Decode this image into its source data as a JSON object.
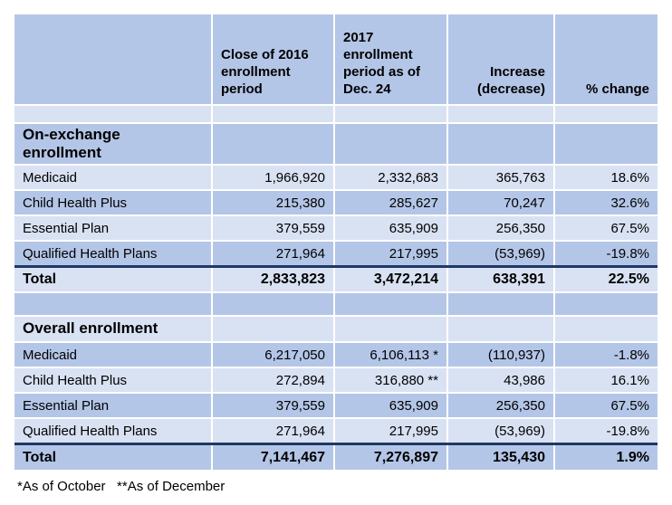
{
  "table_header": {
    "col_2016": "Close of 2016\nenrollment\nperiod",
    "col_2017": "2017\nenrollment\nperiod as of\nDec. 24",
    "col_increase": "Increase\n(decrease)",
    "col_pct_change": "% change"
  },
  "sections": [
    {
      "title": "On-exchange\nenrollment",
      "rows": [
        {
          "label": "Medicaid",
          "v2016": "1,966,920",
          "v2017": "2,332,683",
          "increase": "365,763",
          "pct_change": "18.6%"
        },
        {
          "label": "Child Health Plus",
          "v2016": "215,380",
          "v2017": "285,627",
          "increase": "70,247",
          "pct_change": "32.6%"
        },
        {
          "label": "Essential Plan",
          "v2016": "379,559",
          "v2017": "635,909",
          "increase": "256,350",
          "pct_change": "67.5%"
        },
        {
          "label": "Qualified Health Plans",
          "v2016": "271,964",
          "v2017": "217,995",
          "increase": "(53,969)",
          "pct_change": "-19.8%"
        }
      ],
      "total": {
        "label": "Total",
        "v2016": "2,833,823",
        "v2017": "3,472,214",
        "increase": "638,391",
        "pct_change": "22.5%"
      }
    },
    {
      "title": "Overall enrollment",
      "rows": [
        {
          "label": "Medicaid",
          "v2016": "6,217,050",
          "v2017": "6,106,113 *",
          "increase": "(110,937)",
          "pct_change": "-1.8%"
        },
        {
          "label": "Child Health Plus",
          "v2016": "272,894",
          "v2017": "316,880 **",
          "increase": "43,986",
          "pct_change": "16.1%"
        },
        {
          "label": "Essential Plan",
          "v2016": "379,559",
          "v2017": "635,909",
          "increase": "256,350",
          "pct_change": "67.5%"
        },
        {
          "label": "Qualified Health Plans",
          "v2016": "271,964",
          "v2017": "217,995",
          "increase": "(53,969)",
          "pct_change": "-19.8%"
        }
      ],
      "total": {
        "label": "Total",
        "v2016": "7,141,467",
        "v2017": "7,276,897",
        "increase": "135,430",
        "pct_change": "1.9%"
      }
    }
  ],
  "footnote": "*As of October   **As of December",
  "colors": {
    "band_medium": "#b4c6e7",
    "band_light": "#d9e2f3",
    "total_divider_line": "#1f3864",
    "grid_line": "#ffffff",
    "text": "#000000"
  },
  "chart_data": {
    "type": "table",
    "title": "",
    "columns": [
      "",
      "Close of 2016 enrollment period",
      "2017 enrollment period as of Dec. 24",
      "Increase (decrease)",
      "% change"
    ],
    "rows": [
      [
        "On-exchange enrollment",
        "",
        "",
        "",
        ""
      ],
      [
        "Medicaid",
        "1,966,920",
        "2,332,683",
        "365,763",
        "18.6%"
      ],
      [
        "Child Health Plus",
        "215,380",
        "285,627",
        "70,247",
        "32.6%"
      ],
      [
        "Essential Plan",
        "379,559",
        "635,909",
        "256,350",
        "67.5%"
      ],
      [
        "Qualified Health Plans",
        "271,964",
        "217,995",
        "(53,969)",
        "-19.8%"
      ],
      [
        "Total",
        "2,833,823",
        "3,472,214",
        "638,391",
        "22.5%"
      ],
      [
        "Overall enrollment",
        "",
        "",
        "",
        ""
      ],
      [
        "Medicaid",
        "6,217,050",
        "6,106,113 *",
        "(110,937)",
        "-1.8%"
      ],
      [
        "Child Health Plus",
        "272,894",
        "316,880 **",
        "43,986",
        "16.1%"
      ],
      [
        "Essential Plan",
        "379,559",
        "635,909",
        "256,350",
        "67.5%"
      ],
      [
        "Qualified Health Plans",
        "271,964",
        "217,995",
        "(53,969)",
        "-19.8%"
      ],
      [
        "Total",
        "7,141,467",
        "7,276,897",
        "135,430",
        "1.9%"
      ]
    ],
    "footnote": "*As of October   **As of December"
  }
}
